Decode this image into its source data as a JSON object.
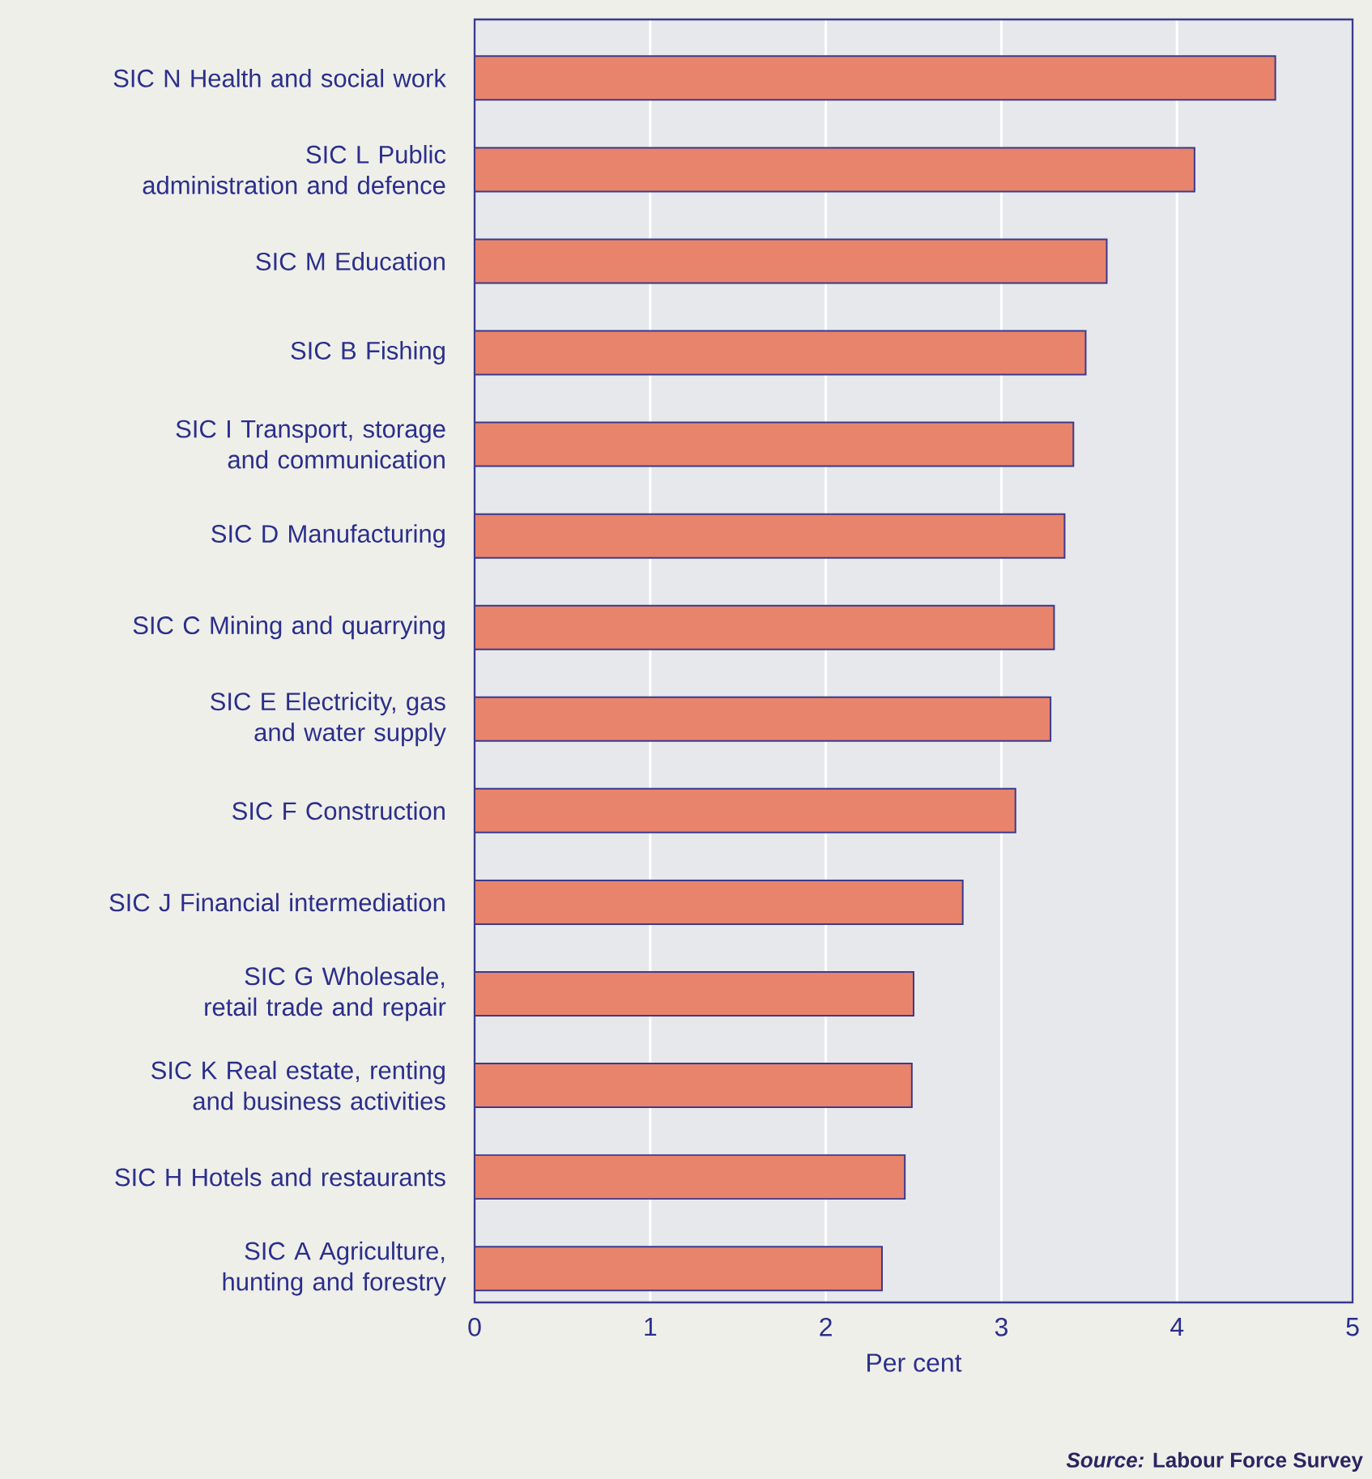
{
  "chart_data": {
    "type": "bar",
    "orientation": "horizontal",
    "categories": [
      "SIC N Health and social work",
      "SIC L Public administration and defence",
      "SIC M Education",
      "SIC B Fishing",
      "SIC I Transport, storage and communication",
      "SIC D Manufacturing",
      "SIC C Mining and quarrying",
      "SIC E Electricity, gas and water supply",
      "SIC F Construction",
      "SIC J Financial intermediation",
      "SIC G Wholesale, retail trade and repair",
      "SIC K Real estate, renting and business activities",
      "SIC H Hotels and restaurants",
      "SIC A Agriculture, hunting and forestry"
    ],
    "values": [
      4.56,
      4.1,
      3.6,
      3.48,
      3.41,
      3.36,
      3.3,
      3.28,
      3.08,
      2.78,
      2.5,
      2.49,
      2.45,
      2.32
    ],
    "color": "#e8846c",
    "xlabel": "Per cent",
    "xlim": [
      0,
      5
    ],
    "xticks": [
      0,
      1,
      2,
      3,
      4,
      5
    ],
    "grid": "x",
    "annotations": [
      "*Source:* Labour Force Survey"
    ]
  }
}
